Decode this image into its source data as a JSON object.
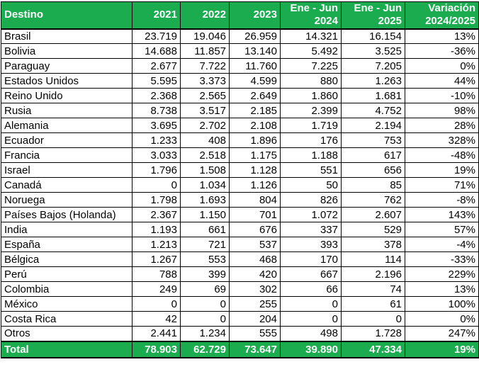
{
  "colors": {
    "header_green": "#1BAC50",
    "header_text": "#FFFFFF",
    "body_text": "#000000",
    "border": "#000000"
  },
  "header": {
    "columns": [
      {
        "line1": "Destino",
        "line2": ""
      },
      {
        "line1": "2021",
        "line2": ""
      },
      {
        "line1": "2022",
        "line2": ""
      },
      {
        "line1": "2023",
        "line2": ""
      },
      {
        "line1": "Ene - Jun",
        "line2": "2024"
      },
      {
        "line1": "Ene - Jun",
        "line2": "2025"
      },
      {
        "line1": "Variación",
        "line2": "2024/2025"
      }
    ]
  },
  "chart_data": {
    "type": "table",
    "columns": [
      "Destino",
      "2021",
      "2022",
      "2023",
      "Ene - Jun 2024",
      "Ene - Jun 2025",
      "Variación 2024/2025"
    ],
    "number_format": "thousands separated by dot (es)",
    "rows": [
      {
        "destino": "Brasil",
        "values": [
          23719,
          19046,
          26959,
          14321,
          16154
        ],
        "variacion": "13%"
      },
      {
        "destino": "Bolivia",
        "values": [
          14688,
          11857,
          13140,
          5492,
          3525
        ],
        "variacion": "-36%"
      },
      {
        "destino": "Paraguay",
        "values": [
          2677,
          7722,
          11760,
          7225,
          7205
        ],
        "variacion": "0%"
      },
      {
        "destino": "Estados Unidos",
        "values": [
          5595,
          3373,
          4599,
          880,
          1263
        ],
        "variacion": "44%"
      },
      {
        "destino": "Reino Unido",
        "values": [
          2368,
          2565,
          2649,
          1860,
          1681
        ],
        "variacion": "-10%"
      },
      {
        "destino": "Rusia",
        "values": [
          8738,
          3517,
          2185,
          2399,
          4752
        ],
        "variacion": "98%"
      },
      {
        "destino": "Alemania",
        "values": [
          3695,
          2702,
          2108,
          1719,
          2194
        ],
        "variacion": "28%"
      },
      {
        "destino": "Ecuador",
        "values": [
          1233,
          408,
          1896,
          176,
          753
        ],
        "variacion": "328%"
      },
      {
        "destino": "Francia",
        "values": [
          3033,
          2518,
          1175,
          1188,
          617
        ],
        "variacion": "-48%"
      },
      {
        "destino": "Israel",
        "values": [
          1796,
          1508,
          1128,
          551,
          656
        ],
        "variacion": "19%"
      },
      {
        "destino": "Canadá",
        "values": [
          0,
          1034,
          1126,
          50,
          85
        ],
        "variacion": "71%"
      },
      {
        "destino": "Noruega",
        "values": [
          1798,
          1693,
          804,
          826,
          762
        ],
        "variacion": "-8%"
      },
      {
        "destino": "Países Bajos (Holanda)",
        "values": [
          2367,
          1150,
          701,
          1072,
          2607
        ],
        "variacion": "143%"
      },
      {
        "destino": "India",
        "values": [
          1193,
          661,
          676,
          337,
          529
        ],
        "variacion": "57%"
      },
      {
        "destino": "España",
        "values": [
          1213,
          721,
          537,
          393,
          378
        ],
        "variacion": "-4%"
      },
      {
        "destino": "Bélgica",
        "values": [
          1267,
          553,
          468,
          170,
          114
        ],
        "variacion": "-33%"
      },
      {
        "destino": "Perú",
        "values": [
          788,
          399,
          420,
          667,
          2196
        ],
        "variacion": "229%"
      },
      {
        "destino": "Colombia",
        "values": [
          249,
          69,
          302,
          66,
          74
        ],
        "variacion": "13%"
      },
      {
        "destino": "México",
        "values": [
          0,
          0,
          255,
          0,
          61
        ],
        "variacion": "100%"
      },
      {
        "destino": "Costa Rica",
        "values": [
          42,
          0,
          204,
          0,
          0
        ],
        "variacion": "0%"
      },
      {
        "destino": "Otros",
        "values": [
          2441,
          1234,
          555,
          498,
          1728
        ],
        "variacion": "247%"
      }
    ],
    "total": {
      "destino": "Total",
      "values": [
        78903,
        62729,
        73647,
        39890,
        47334
      ],
      "variacion": "19%"
    }
  }
}
